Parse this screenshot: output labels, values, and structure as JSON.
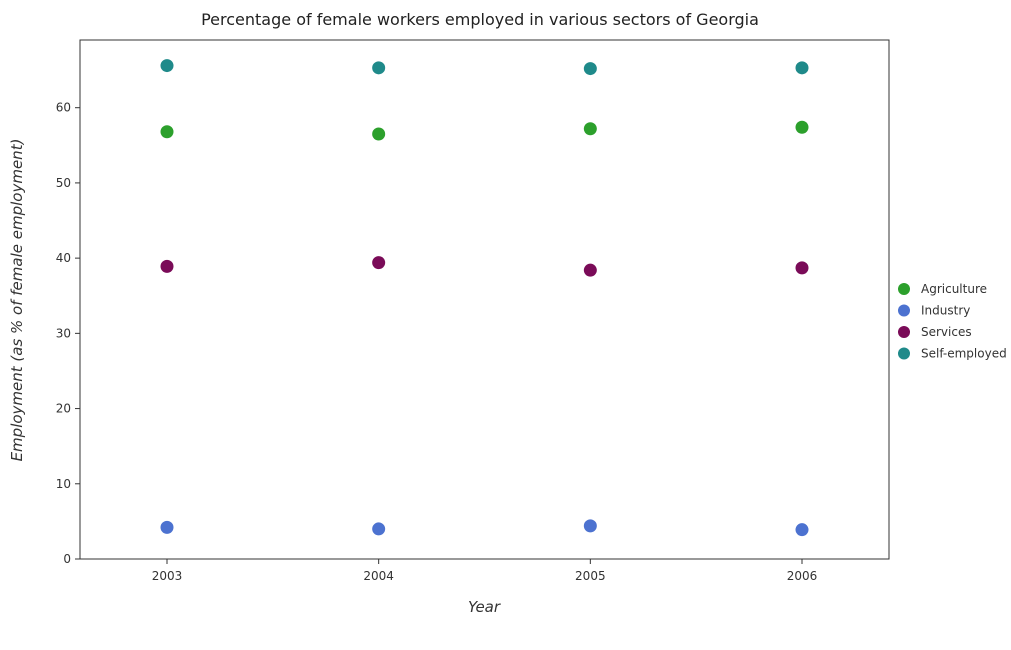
{
  "chart_data": {
    "type": "scatter",
    "title": "Percentage of female workers employed in various sectors of Georgia",
    "xlabel": "Year",
    "ylabel": "Employment (as % of female employment)",
    "categories": [
      "2003",
      "2004",
      "2005",
      "2006"
    ],
    "ylim": [
      0,
      69
    ],
    "yticks": [
      "0",
      "10",
      "20",
      "30",
      "40",
      "50",
      "60"
    ],
    "ytick_values": [
      0,
      10,
      20,
      30,
      40,
      50,
      60
    ],
    "legend_position": "right",
    "grid": false,
    "series": [
      {
        "name": "Agriculture",
        "color": "#2ca02c",
        "values": [
          56.8,
          56.5,
          57.2,
          57.4
        ]
      },
      {
        "name": "Industry",
        "color": "#4c72d0",
        "values": [
          4.2,
          4.0,
          4.4,
          3.9
        ]
      },
      {
        "name": "Services",
        "color": "#7a0b58",
        "values": [
          38.9,
          39.4,
          38.4,
          38.7
        ]
      },
      {
        "name": "Self-employed",
        "color": "#1f8a8a",
        "values": [
          65.6,
          65.3,
          65.2,
          65.3
        ]
      }
    ]
  }
}
